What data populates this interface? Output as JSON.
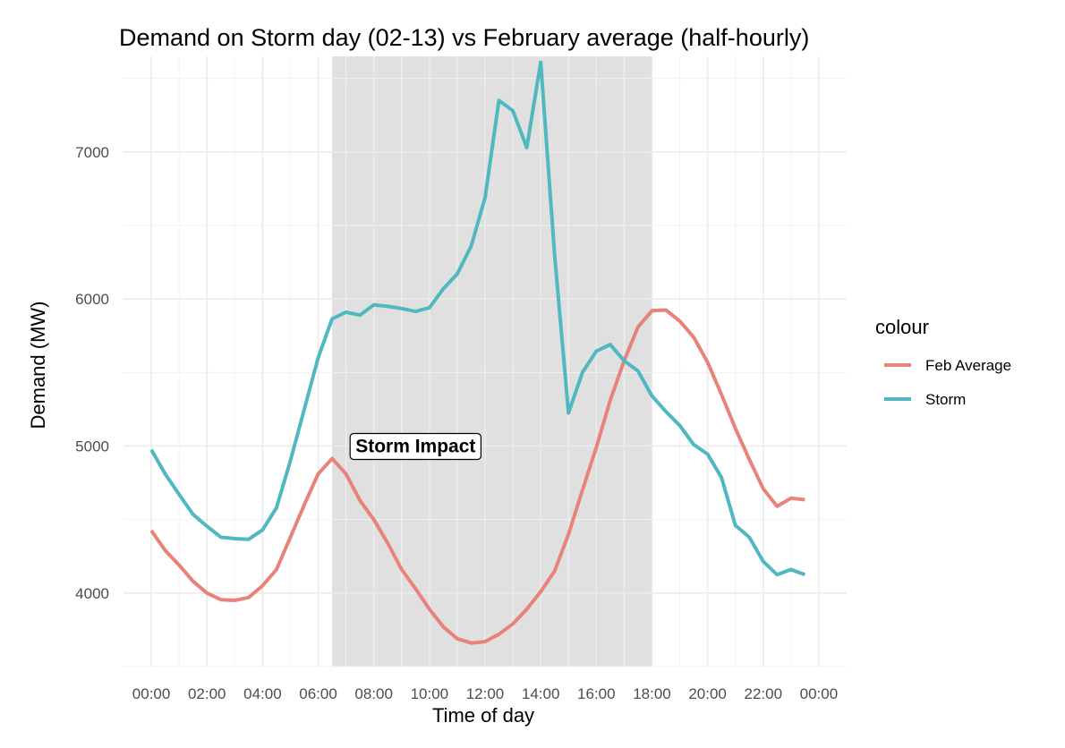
{
  "chart_data": {
    "type": "line",
    "title": "Demand on Storm day (02-13) vs February average (half-hourly)",
    "xlabel": "Time of day",
    "ylabel": "Demand (MW)",
    "x_ticks": [
      "00:00",
      "02:00",
      "04:00",
      "06:00",
      "08:00",
      "10:00",
      "12:00",
      "14:00",
      "16:00",
      "18:00",
      "20:00",
      "22:00",
      "00:00"
    ],
    "y_ticks": [
      4000,
      5000,
      6000,
      7000
    ],
    "ylim": [
      3500,
      7650
    ],
    "xlim_hours": [
      -1,
      25
    ],
    "grid": true,
    "legend": {
      "title": "colour",
      "position": "right"
    },
    "shaded_region": {
      "from": "06:30",
      "to": "18:00",
      "color": "#d3d3d3"
    },
    "annotation": {
      "text": "Storm Impact",
      "x": "09:30",
      "y": 5000
    },
    "x": [
      "00:00",
      "00:30",
      "01:00",
      "01:30",
      "02:00",
      "02:30",
      "03:00",
      "03:30",
      "04:00",
      "04:30",
      "05:00",
      "05:30",
      "06:00",
      "06:30",
      "07:00",
      "07:30",
      "08:00",
      "08:30",
      "09:00",
      "09:30",
      "10:00",
      "10:30",
      "11:00",
      "11:30",
      "12:00",
      "12:30",
      "13:00",
      "13:30",
      "14:00",
      "14:30",
      "15:00",
      "15:30",
      "16:00",
      "16:30",
      "17:00",
      "17:30",
      "18:00",
      "18:30",
      "19:00",
      "19:30",
      "20:00",
      "20:30",
      "21:00",
      "21:30",
      "22:00",
      "22:30",
      "23:00",
      "23:30"
    ],
    "series": [
      {
        "name": "Feb Average",
        "color": "#e8837a",
        "values": [
          4425,
          4290,
          4190,
          4080,
          4000,
          3955,
          3950,
          3970,
          4050,
          4160,
          4380,
          4600,
          4810,
          4915,
          4810,
          4630,
          4500,
          4340,
          4160,
          4030,
          3890,
          3770,
          3690,
          3660,
          3670,
          3720,
          3790,
          3890,
          4010,
          4150,
          4400,
          4700,
          4990,
          5310,
          5580,
          5810,
          5920,
          5925,
          5850,
          5740,
          5570,
          5350,
          5120,
          4910,
          4710,
          4590,
          4645,
          4635
        ]
      },
      {
        "name": "Storm",
        "color": "#4fb8c0",
        "values": [
          4975,
          4810,
          4670,
          4535,
          4455,
          4380,
          4370,
          4365,
          4430,
          4580,
          4900,
          5250,
          5600,
          5865,
          5910,
          5890,
          5960,
          5950,
          5935,
          5915,
          5940,
          6070,
          6170,
          6360,
          6690,
          7350,
          7280,
          7030,
          7610,
          6300,
          5225,
          5500,
          5645,
          5690,
          5580,
          5510,
          5340,
          5235,
          5140,
          5010,
          4945,
          4785,
          4460,
          4380,
          4215,
          4125,
          4160,
          4125
        ]
      }
    ]
  }
}
